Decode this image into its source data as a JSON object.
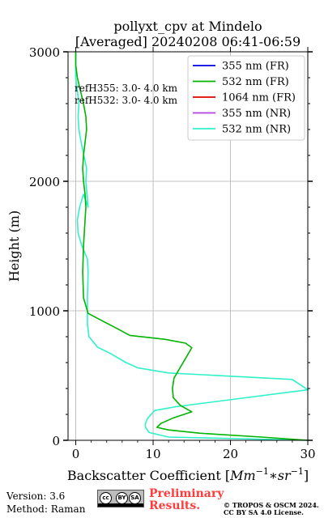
{
  "chart_data": {
    "type": "line",
    "title": "pollyxt_cpv at Mindelo",
    "subtitle": "[Averaged] 20240208 06:41-06:59",
    "xlabel_html": "Backscatter Coefficient [Mm^{-1}*sr^{-1}]",
    "xlabel_prefix": "Backscatter Coefficient [",
    "xlabel_unit_base": "Mm",
    "xlabel_exp1": "−1",
    "xlabel_mid": "∗sr",
    "xlabel_exp2": "−1",
    "xlabel_suffix": "]",
    "ylabel": "Height (m)",
    "xlim": [
      -1,
      30
    ],
    "ylim": [
      0,
      3000
    ],
    "xticks": [
      0,
      10,
      20,
      30
    ],
    "yticks": [
      0,
      1000,
      2000,
      3000
    ],
    "grid": true,
    "legend_position": "top-right",
    "annotations": [
      "refH355:  3.0- 4.0 km",
      "refH532:  3.0- 4.0 km"
    ],
    "series": [
      {
        "name": "355 nm (FR)",
        "color": "#0000e0",
        "x": [],
        "y": []
      },
      {
        "name": "532 nm (FR)",
        "color": "#00b400",
        "x": [
          30,
          24,
          16,
          12,
          10.5,
          11,
          12.5,
          15,
          13.5,
          12.6,
          12.5,
          12.7,
          15,
          14.2,
          11.5,
          7,
          4.8,
          3.5,
          1.6,
          1.0,
          0.9,
          1.0,
          1.2,
          1.3,
          1.2,
          1.0,
          0.9,
          1.0,
          1.2,
          1.4,
          1.3,
          1.0,
          0.6,
          0.2,
          0.0,
          0.0
        ],
        "y": [
          0,
          25,
          55,
          80,
          100,
          130,
          170,
          220,
          270,
          330,
          400,
          480,
          715,
          750,
          780,
          810,
          880,
          920,
          980,
          1100,
          1300,
          1500,
          1700,
          1800,
          1900,
          2000,
          2100,
          2200,
          2300,
          2400,
          2500,
          2600,
          2700,
          2800,
          2900,
          3000
        ]
      },
      {
        "name": "1064 nm (FR)",
        "color": "#e00000",
        "x": [],
        "y": []
      },
      {
        "name": "355 nm (NR)",
        "color": "#b040e0",
        "x": [],
        "y": []
      },
      {
        "name": "532 nm (NR)",
        "color": "#2ef2c8",
        "x": [
          30,
          12,
          9.5,
          9,
          9,
          9.3,
          10.2,
          13,
          30,
          28,
          12,
          8,
          6.5,
          4.5,
          2.8,
          1.7,
          1.5,
          1.5,
          1.5,
          1.6,
          1.5,
          0.8,
          0.3,
          0.2,
          0.5,
          1.0,
          1.6,
          1.3,
          1.4,
          0.7,
          0.4,
          0.3,
          0.4,
          0.0,
          0.0
        ],
        "y": [
          0,
          25,
          60,
          100,
          130,
          170,
          230,
          260,
          390,
          470,
          520,
          560,
          600,
          670,
          720,
          800,
          900,
          1000,
          1100,
          1300,
          1400,
          1500,
          1600,
          1700,
          1800,
          1900,
          1800,
          2000,
          2100,
          2300,
          2400,
          2500,
          2600,
          2800,
          3000
        ]
      }
    ]
  },
  "footer": {
    "version": "Version: 3.6",
    "method": "Method: Raman",
    "preliminary_line1": "Preliminary",
    "preliminary_line2": "Results.",
    "copyright_line1": "© TROPOS & OSCM 2024.",
    "copyright_line2": "CC BY SA 4.0 License.",
    "cc_labels": [
      "cc",
      "BY",
      "SA"
    ]
  }
}
